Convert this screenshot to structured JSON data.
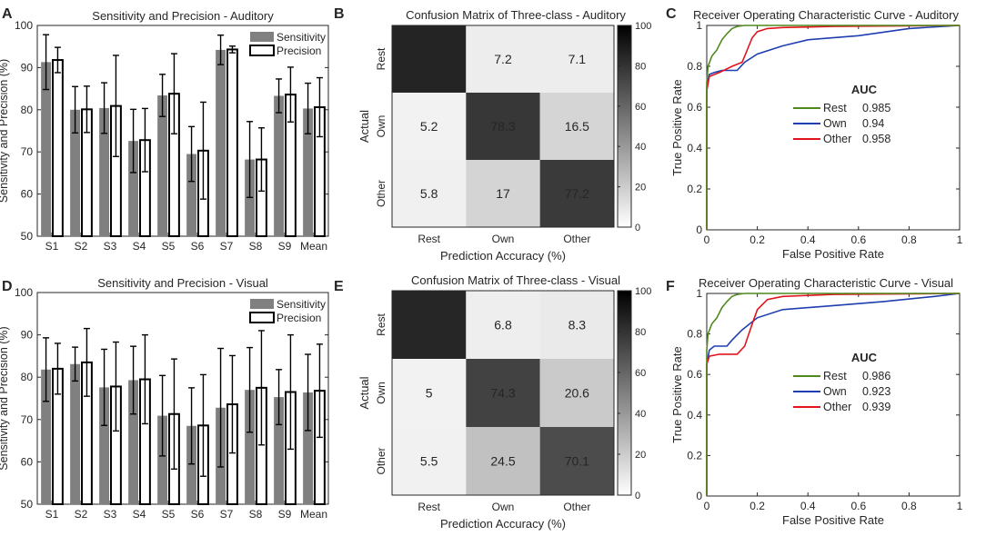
{
  "colors": {
    "sens_bar": "#808080",
    "prec_bar": "#ffffff",
    "rest_line": "#4f8a1e",
    "own_line": "#1f3fb0",
    "other_line": "#e0141c"
  },
  "panels": [
    {
      "label": "A"
    },
    {
      "label": "B"
    },
    {
      "label": "C"
    },
    {
      "label": "D"
    },
    {
      "label": "E"
    },
    {
      "label": "F"
    }
  ],
  "chart_data": [
    {
      "id": "A",
      "type": "bar",
      "title": "Sensitivity and Precision - Auditory",
      "xlabel": "",
      "ylabel": "Sensitivity and Precision (%)",
      "ylim": [
        50,
        100
      ],
      "yticks": [
        "50",
        "60",
        "70",
        "80",
        "90",
        "100"
      ],
      "categories": [
        "S1",
        "S2",
        "S3",
        "S4",
        "S5",
        "S6",
        "S7",
        "S8",
        "S9",
        "Mean"
      ],
      "legend": [
        "Sensitivity",
        "Precision"
      ],
      "legend_loc": "top-right",
      "series": [
        {
          "name": "Sensitivity",
          "values": [
            91.3,
            80.0,
            80.4,
            72.6,
            83.4,
            69.5,
            94.2,
            68.2,
            83.3,
            80.3
          ],
          "err": [
            6.5,
            5.5,
            6.0,
            7.5,
            5.0,
            6.5,
            3.5,
            9.0,
            4.0,
            6.0
          ]
        },
        {
          "name": "Precision",
          "values": [
            91.8,
            80.1,
            80.9,
            72.8,
            83.8,
            70.3,
            94.3,
            68.2,
            83.6,
            80.6
          ],
          "err": [
            3.0,
            5.5,
            12.0,
            7.5,
            9.5,
            11.5,
            0.8,
            7.5,
            6.5,
            7.0
          ]
        }
      ]
    },
    {
      "id": "B",
      "type": "heatmap",
      "title": "Confusion Matrix of Three-class - Auditory",
      "xlabel": "Prediction Accuracy (%)",
      "ylabel": "Actual",
      "rows": [
        "Rest",
        "Own",
        "Other"
      ],
      "cols": [
        "Rest",
        "Own",
        "Other"
      ],
      "values": [
        [
          "85.7",
          "7.2",
          "7.1"
        ],
        [
          "5.2",
          "78.3",
          "16.5"
        ],
        [
          "5.8",
          "17",
          "77.2"
        ]
      ],
      "colorbar": {
        "min": 0,
        "max": 100,
        "ticks": [
          "0",
          "20",
          "40",
          "60",
          "80",
          "100"
        ]
      }
    },
    {
      "id": "C",
      "type": "line",
      "title": "Receiver Operating Characteristic Curve - Auditory",
      "xlabel": "False Positive Rate",
      "ylabel": "True Positive Rate",
      "xlim": [
        0,
        1
      ],
      "ylim": [
        0,
        1
      ],
      "xticks": [
        "0",
        "0.2",
        "0.4",
        "0.6",
        "0.8",
        "1"
      ],
      "yticks": [
        "0",
        "0.2",
        "0.4",
        "0.6",
        "0.8",
        "1"
      ],
      "legend_title": "AUC",
      "legend_loc": "center-right",
      "series": [
        {
          "name": "Rest",
          "auc": "0.985",
          "points": [
            [
              0,
              0
            ],
            [
              0,
              0.72
            ],
            [
              0.005,
              0.8
            ],
            [
              0.02,
              0.85
            ],
            [
              0.04,
              0.88
            ],
            [
              0.06,
              0.93
            ],
            [
              0.08,
              0.96
            ],
            [
              0.1,
              0.985
            ],
            [
              0.12,
              0.995
            ],
            [
              0.15,
              1
            ],
            [
              1,
              1
            ]
          ]
        },
        {
          "name": "Own",
          "auc": "0.94",
          "points": [
            [
              0,
              0
            ],
            [
              0,
              0.7
            ],
            [
              0.01,
              0.76
            ],
            [
              0.03,
              0.77
            ],
            [
              0.06,
              0.78
            ],
            [
              0.12,
              0.78
            ],
            [
              0.15,
              0.82
            ],
            [
              0.2,
              0.86
            ],
            [
              0.3,
              0.9
            ],
            [
              0.4,
              0.93
            ],
            [
              0.6,
              0.95
            ],
            [
              0.8,
              0.985
            ],
            [
              1,
              1
            ]
          ]
        },
        {
          "name": "Other",
          "auc": "0.958",
          "points": [
            [
              0,
              0
            ],
            [
              0,
              0.68
            ],
            [
              0.01,
              0.75
            ],
            [
              0.05,
              0.77
            ],
            [
              0.1,
              0.8
            ],
            [
              0.14,
              0.82
            ],
            [
              0.16,
              0.88
            ],
            [
              0.18,
              0.94
            ],
            [
              0.2,
              0.97
            ],
            [
              0.24,
              0.985
            ],
            [
              0.3,
              0.99
            ],
            [
              0.5,
              0.995
            ],
            [
              1,
              1
            ]
          ]
        }
      ]
    },
    {
      "id": "D",
      "type": "bar",
      "title": "Sensitivity and Precision - Visual",
      "xlabel": "",
      "ylabel": "Sensitivity and Precision (%)",
      "ylim": [
        50,
        100
      ],
      "yticks": [
        "50",
        "60",
        "70",
        "80",
        "90",
        "100"
      ],
      "categories": [
        "S1",
        "S2",
        "S3",
        "S4",
        "S5",
        "S6",
        "S7",
        "S8",
        "S9",
        "Mean"
      ],
      "legend": [
        "Sensitivity",
        "Precision"
      ],
      "legend_loc": "top-right",
      "series": [
        {
          "name": "Sensitivity",
          "values": [
            81.8,
            83.1,
            77.6,
            79.3,
            70.9,
            68.5,
            72.8,
            77.0,
            75.3,
            76.4
          ],
          "err": [
            7.5,
            4.0,
            9.0,
            8.0,
            9.5,
            9.0,
            14.0,
            10.0,
            6.5,
            9.0
          ]
        },
        {
          "name": "Precision",
          "values": [
            82.0,
            83.5,
            77.8,
            79.5,
            71.3,
            68.6,
            73.6,
            77.5,
            76.5,
            76.8
          ],
          "err": [
            6.0,
            8.0,
            10.5,
            10.5,
            13.0,
            12.0,
            11.5,
            13.5,
            13.5,
            11.0
          ]
        }
      ]
    },
    {
      "id": "E",
      "type": "heatmap",
      "title": "Confusion Matrix of Three-class - Visual",
      "xlabel": "Prediction Accuracy (%)",
      "ylabel": "Actual",
      "rows": [
        "Rest",
        "Own",
        "Other"
      ],
      "cols": [
        "Rest",
        "Own",
        "Other"
      ],
      "values": [
        [
          "85",
          "6.8",
          "8.3"
        ],
        [
          "5",
          "74.3",
          "20.6"
        ],
        [
          "5.5",
          "24.5",
          "70.1"
        ]
      ],
      "colorbar": {
        "min": 0,
        "max": 100,
        "ticks": [
          "0",
          "20",
          "40",
          "60",
          "80",
          "100"
        ]
      }
    },
    {
      "id": "F",
      "type": "line",
      "title": "Receiver Operating Characteristic Curve - Visual",
      "xlabel": "False Positive Rate",
      "ylabel": "True Positive Rate",
      "xlim": [
        0,
        1
      ],
      "ylim": [
        0,
        1
      ],
      "xticks": [
        "0",
        "0.2",
        "0.4",
        "0.6",
        "0.8",
        "1"
      ],
      "yticks": [
        "0",
        "0.2",
        "0.4",
        "0.6",
        "0.8",
        "1"
      ],
      "legend_title": "AUC",
      "legend_loc": "center-right",
      "series": [
        {
          "name": "Rest",
          "auc": "0.986",
          "points": [
            [
              0,
              0
            ],
            [
              0,
              0.72
            ],
            [
              0.005,
              0.8
            ],
            [
              0.02,
              0.85
            ],
            [
              0.04,
              0.88
            ],
            [
              0.06,
              0.93
            ],
            [
              0.08,
              0.96
            ],
            [
              0.1,
              0.985
            ],
            [
              0.12,
              0.995
            ],
            [
              0.15,
              1
            ],
            [
              1,
              1
            ]
          ]
        },
        {
          "name": "Own",
          "auc": "0.923",
          "points": [
            [
              0,
              0
            ],
            [
              0,
              0.65
            ],
            [
              0.01,
              0.72
            ],
            [
              0.03,
              0.74
            ],
            [
              0.08,
              0.74
            ],
            [
              0.1,
              0.77
            ],
            [
              0.14,
              0.82
            ],
            [
              0.2,
              0.88
            ],
            [
              0.3,
              0.92
            ],
            [
              0.5,
              0.94
            ],
            [
              0.7,
              0.96
            ],
            [
              0.9,
              0.985
            ],
            [
              1,
              1
            ]
          ]
        },
        {
          "name": "Other",
          "auc": "0.939",
          "points": [
            [
              0,
              0
            ],
            [
              0,
              0.65
            ],
            [
              0.01,
              0.69
            ],
            [
              0.05,
              0.7
            ],
            [
              0.12,
              0.7
            ],
            [
              0.15,
              0.74
            ],
            [
              0.18,
              0.85
            ],
            [
              0.2,
              0.92
            ],
            [
              0.24,
              0.97
            ],
            [
              0.3,
              0.985
            ],
            [
              0.5,
              0.995
            ],
            [
              1,
              1
            ]
          ]
        }
      ]
    }
  ]
}
